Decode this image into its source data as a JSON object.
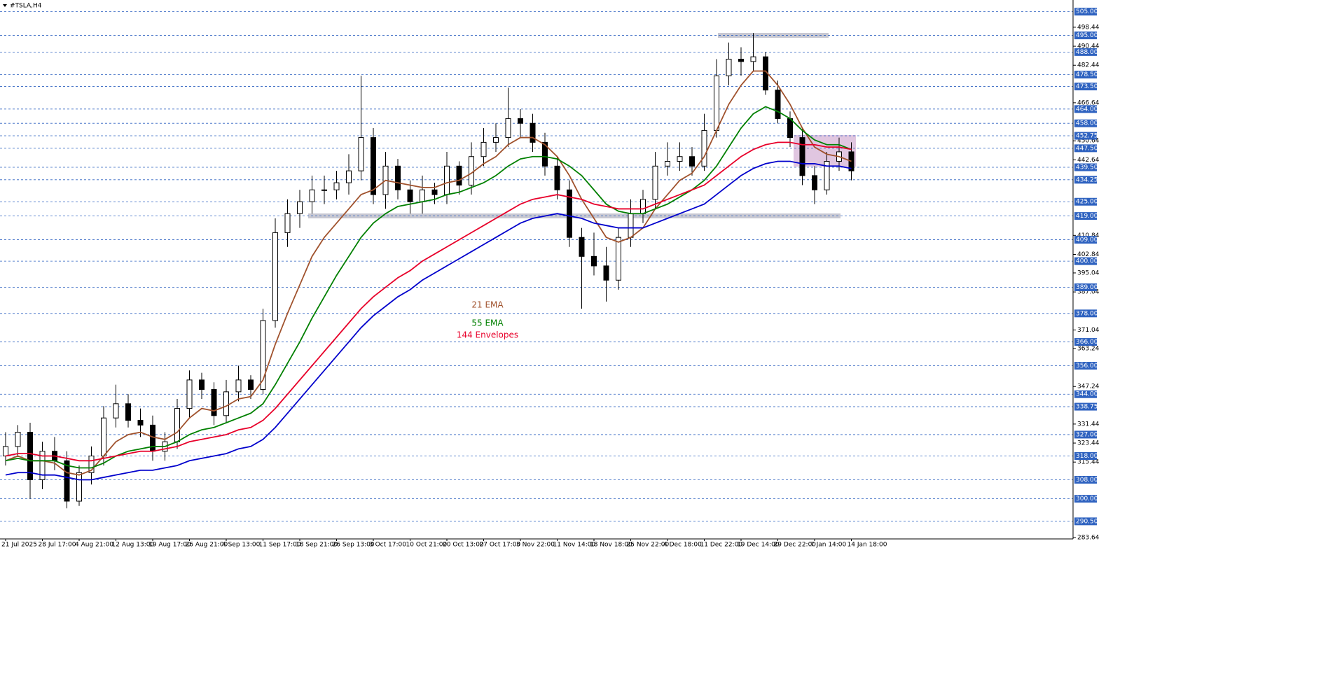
{
  "chart_data": {
    "type": "candlestick",
    "title": "#TSLA,H4",
    "categories": [
      "21 Jul 2025",
      null,
      null,
      "28 Jul 17:00",
      null,
      null,
      "4 Aug 21:00",
      null,
      null,
      "12 Aug 13:00",
      null,
      null,
      "19 Aug 17:00",
      null,
      null,
      "26 Aug 21:00",
      null,
      null,
      "4 Sep 13:00",
      null,
      null,
      "11 Sep 17:00",
      null,
      null,
      "18 Sep 21:00",
      null,
      null,
      "26 Sep 13:00",
      null,
      null,
      "3 Oct 17:00",
      null,
      null,
      "10 Oct 21:00",
      null,
      null,
      "20 Oct 13:00",
      null,
      null,
      "27 Oct 17:00",
      null,
      null,
      "3 Nov 22:00",
      null,
      null,
      "11 Nov 14:00",
      null,
      null,
      "18 Nov 18:00",
      null,
      null,
      "25 Nov 22:00",
      null,
      null,
      "4 Dec 18:00",
      null,
      null,
      "11 Dec 22:00",
      null,
      null,
      "19 Dec 14:00",
      null,
      null,
      "29 Dec 22:00",
      null,
      null,
      "7 Jan 14:00",
      null,
      null,
      "14 Jan 18:00"
    ],
    "open": [
      318,
      322,
      328,
      308,
      320,
      316,
      299,
      311,
      318,
      334,
      340,
      333,
      331,
      320,
      324,
      338,
      350,
      346,
      335,
      345,
      350,
      346,
      375,
      412,
      420,
      425,
      430,
      430,
      433,
      438,
      452,
      428,
      440,
      430,
      425,
      430,
      428,
      440,
      432,
      444,
      450,
      452,
      460,
      458,
      450,
      440,
      430,
      410,
      402,
      398,
      392,
      410,
      420,
      426,
      440,
      442,
      444,
      440,
      455,
      478,
      485,
      484,
      486,
      472,
      460,
      452,
      436,
      430,
      442,
      446
    ],
    "close": [
      322,
      328,
      308,
      320,
      316,
      299,
      311,
      318,
      334,
      340,
      333,
      331,
      320,
      324,
      338,
      350,
      346,
      335,
      345,
      350,
      346,
      375,
      412,
      420,
      425,
      430,
      430,
      433,
      438,
      452,
      428,
      440,
      430,
      425,
      430,
      428,
      440,
      432,
      444,
      450,
      452,
      460,
      458,
      450,
      440,
      430,
      410,
      402,
      398,
      392,
      410,
      420,
      426,
      440,
      442,
      444,
      440,
      455,
      478,
      485,
      484,
      486,
      472,
      460,
      452,
      436,
      430,
      442,
      446,
      438
    ],
    "high": [
      328,
      331,
      332,
      324,
      326,
      320,
      314,
      322,
      339,
      348,
      344,
      338,
      335,
      328,
      342,
      354,
      353,
      349,
      350,
      356,
      352,
      380,
      418,
      426,
      430,
      436,
      436,
      438,
      445,
      478,
      456,
      446,
      443,
      434,
      436,
      433,
      446,
      442,
      450,
      456,
      458,
      473,
      464,
      462,
      454,
      444,
      434,
      414,
      412,
      406,
      414,
      426,
      430,
      446,
      450,
      450,
      448,
      462,
      485,
      492,
      490,
      496,
      488,
      476,
      463,
      456,
      440,
      446,
      452,
      450
    ],
    "low": [
      314,
      318,
      300,
      304,
      312,
      296,
      297,
      306,
      314,
      330,
      330,
      326,
      316,
      316,
      321,
      334,
      342,
      331,
      332,
      341,
      342,
      344,
      372,
      406,
      414,
      420,
      424,
      426,
      428,
      434,
      424,
      422,
      426,
      420,
      420,
      424,
      424,
      428,
      428,
      440,
      446,
      448,
      452,
      446,
      436,
      426,
      406,
      380,
      394,
      383,
      388,
      406,
      416,
      422,
      436,
      438,
      436,
      438,
      452,
      474,
      478,
      480,
      470,
      458,
      448,
      432,
      424,
      428,
      438,
      434
    ],
    "up_color": "#ffffff",
    "down_color": "#000000",
    "series": [
      {
        "name": "21 EMA",
        "color": "#a0522d",
        "values": [
          316,
          318,
          316,
          316,
          315,
          311,
          310,
          312,
          318,
          324,
          327,
          328,
          326,
          325,
          328,
          334,
          338,
          337,
          339,
          342,
          343,
          350,
          365,
          378,
          390,
          402,
          410,
          416,
          422,
          428,
          430,
          434,
          433,
          432,
          431,
          431,
          433,
          434,
          437,
          441,
          444,
          449,
          452,
          452,
          449,
          444,
          436,
          426,
          418,
          410,
          408,
          410,
          414,
          422,
          428,
          434,
          437,
          444,
          455,
          466,
          474,
          480,
          480,
          474,
          466,
          456,
          448,
          445,
          444,
          442
        ]
      },
      {
        "name": "55 EMA",
        "color": "#008000",
        "values": [
          316,
          317,
          316,
          316,
          316,
          314,
          313,
          313,
          315,
          318,
          320,
          321,
          322,
          322,
          324,
          327,
          329,
          330,
          332,
          334,
          336,
          340,
          348,
          357,
          366,
          376,
          385,
          394,
          402,
          410,
          416,
          420,
          423,
          424,
          425,
          426,
          428,
          429,
          431,
          433,
          436,
          440,
          443,
          444,
          444,
          443,
          440,
          436,
          430,
          424,
          421,
          420,
          420,
          422,
          424,
          427,
          430,
          434,
          440,
          448,
          456,
          462,
          465,
          463,
          460,
          455,
          451,
          449,
          449,
          447
        ]
      },
      {
        "name": "144 Envelopes",
        "color": "#e8002a",
        "values": [
          318,
          319,
          319,
          318,
          318,
          317,
          316,
          316,
          317,
          318,
          319,
          320,
          320,
          321,
          322,
          324,
          325,
          326,
          327,
          329,
          330,
          333,
          338,
          344,
          350,
          356,
          362,
          368,
          374,
          380,
          385,
          389,
          393,
          396,
          400,
          403,
          406,
          409,
          412,
          415,
          418,
          421,
          424,
          426,
          427,
          428,
          427,
          426,
          424,
          423,
          422,
          422,
          422,
          424,
          426,
          428,
          430,
          432,
          436,
          440,
          444,
          447,
          449,
          450,
          450,
          449,
          449,
          448,
          448,
          447
        ]
      },
      {
        "color": "#0000cc",
        "values": [
          310,
          311,
          311,
          310,
          310,
          309,
          308,
          308,
          309,
          310,
          311,
          312,
          312,
          313,
          314,
          316,
          317,
          318,
          319,
          321,
          322,
          325,
          330,
          336,
          342,
          348,
          354,
          360,
          366,
          372,
          377,
          381,
          385,
          388,
          392,
          395,
          398,
          401,
          404,
          407,
          410,
          413,
          416,
          418,
          419,
          420,
          419,
          418,
          416,
          415,
          414,
          414,
          414,
          416,
          418,
          420,
          422,
          424,
          428,
          432,
          436,
          439,
          441,
          442,
          442,
          441,
          441,
          440,
          440,
          439
        ]
      }
    ],
    "ylim": [
      283.1,
      509.9
    ],
    "yticks": [
      283.64,
      315.44,
      323.44,
      331.44,
      347.24,
      363.24,
      371.04,
      387.04,
      395.04,
      402.84,
      410.84,
      442.64,
      450.64,
      466.64,
      482.44,
      490.44,
      498.44
    ],
    "levels": [
      {
        "value": 505,
        "label": "505.00"
      },
      {
        "value": 495,
        "label": "495.00"
      },
      {
        "value": 488,
        "label": "488.00"
      },
      {
        "value": 478.5,
        "label": "478.50"
      },
      {
        "value": 473.5,
        "label": "473.50"
      },
      {
        "value": 464,
        "label": "464.00"
      },
      {
        "value": 458,
        "label": "458.00"
      },
      {
        "value": 452.75,
        "label": "452.75"
      },
      {
        "value": 447.5,
        "label": "447.50"
      },
      {
        "value": 439.5,
        "label": "439.50"
      },
      {
        "value": 434.25,
        "label": "434.25"
      },
      {
        "value": 425,
        "label": "425.00"
      },
      {
        "value": 419,
        "label": "419.00"
      },
      {
        "value": 409,
        "label": "409.00"
      },
      {
        "value": 400,
        "label": "400.00"
      },
      {
        "value": 389,
        "label": "389.00"
      },
      {
        "value": 378,
        "label": "378.00"
      },
      {
        "value": 366,
        "label": "366.00"
      },
      {
        "value": 356,
        "label": "356.00"
      },
      {
        "value": 344,
        "label": "344.00"
      },
      {
        "value": 338.75,
        "label": "338.75"
      },
      {
        "value": 327,
        "label": "327.00"
      },
      {
        "value": 318,
        "label": "318.00"
      },
      {
        "value": 308,
        "label": "308.00"
      },
      {
        "value": 300,
        "label": "300.00"
      },
      {
        "value": 290.5,
        "label": "290.50"
      }
    ],
    "level_color": "#2e62c0"
  }
}
